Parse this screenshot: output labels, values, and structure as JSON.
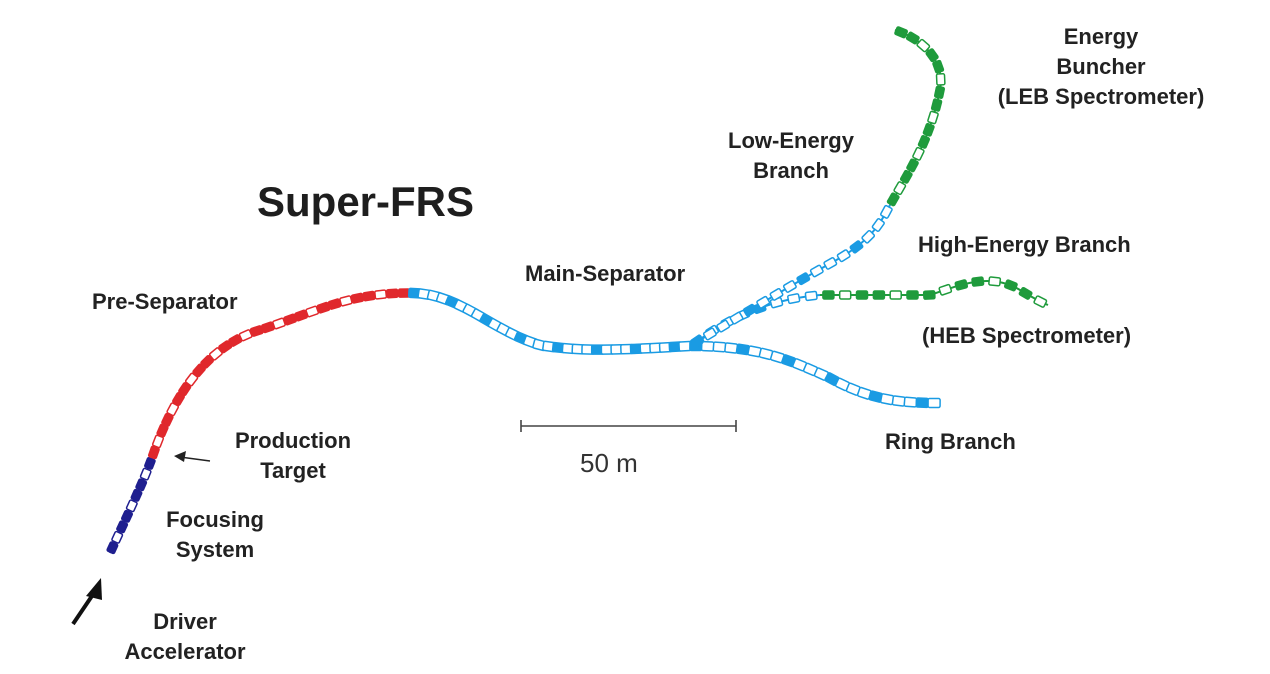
{
  "title": "Super-FRS",
  "labels": {
    "pre_separator": "Pre-Separator",
    "main_separator": "Main-Separator",
    "low_energy_branch": [
      "Low-Energy",
      "Branch"
    ],
    "energy_buncher": [
      "Energy",
      "Buncher",
      "(LEB Spectrometer)"
    ],
    "high_energy_branch": "High-Energy Branch",
    "heb_spectrometer": "(HEB Spectrometer)",
    "ring_branch": "Ring Branch",
    "production_target": [
      "Production",
      "Target"
    ],
    "focusing_system": [
      "Focusing",
      "System"
    ],
    "driver_accelerator": [
      "Driver",
      "Accelerator"
    ]
  },
  "scale_bar": {
    "label": "50 m"
  },
  "colors": {
    "focusing": "#1f1f8f",
    "pre_separator": "#e0282c",
    "main_separator": "#1a9be3",
    "branches": "#1f9b3c",
    "text": "#222222"
  }
}
